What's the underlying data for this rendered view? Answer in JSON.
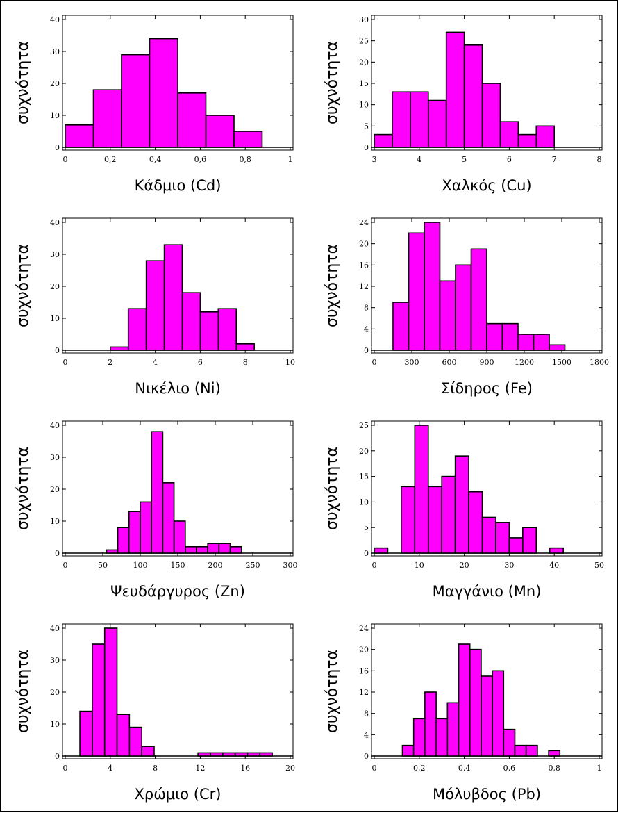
{
  "colors": {
    "bar_fill": "#ff00ff",
    "bar_stroke": "#000000",
    "frame": "#000000"
  },
  "chart_data": [
    {
      "type": "bar",
      "xlabel": "Κάδμιο (Cd)",
      "ylabel": "συχνότητα",
      "xlim": [
        0,
        1
      ],
      "ylim": [
        0,
        40
      ],
      "xticks": [
        0,
        0.2,
        0.4,
        0.6,
        0.8,
        1
      ],
      "xtick_labels": [
        "0",
        "0,2",
        "0,4",
        "0,6",
        "0,8",
        "1"
      ],
      "yticks": [
        0,
        10,
        20,
        30,
        40
      ],
      "ytick_labels": [
        "0",
        "10",
        "20",
        "30",
        "40"
      ],
      "bins": [
        {
          "x0": 0.0,
          "x1": 0.125,
          "count": 7
        },
        {
          "x0": 0.125,
          "x1": 0.25,
          "count": 18
        },
        {
          "x0": 0.25,
          "x1": 0.375,
          "count": 29
        },
        {
          "x0": 0.375,
          "x1": 0.5,
          "count": 34
        },
        {
          "x0": 0.5,
          "x1": 0.625,
          "count": 17
        },
        {
          "x0": 0.625,
          "x1": 0.75,
          "count": 10
        },
        {
          "x0": 0.75,
          "x1": 0.875,
          "count": 5
        }
      ]
    },
    {
      "type": "bar",
      "xlabel": "Χαλκός (Cu)",
      "ylabel": "συχνότητα",
      "xlim": [
        3,
        8
      ],
      "ylim": [
        0,
        30
      ],
      "xticks": [
        3,
        4,
        5,
        6,
        7,
        8
      ],
      "xtick_labels": [
        "3",
        "4",
        "5",
        "6",
        "7",
        "8"
      ],
      "yticks": [
        0,
        5,
        10,
        15,
        20,
        25,
        30
      ],
      "ytick_labels": [
        "0",
        "5",
        "10",
        "15",
        "20",
        "25",
        "30"
      ],
      "bins": [
        {
          "x0": 3.0,
          "x1": 3.4,
          "count": 3
        },
        {
          "x0": 3.4,
          "x1": 3.8,
          "count": 13
        },
        {
          "x0": 3.8,
          "x1": 4.2,
          "count": 13
        },
        {
          "x0": 4.2,
          "x1": 4.6,
          "count": 11
        },
        {
          "x0": 4.6,
          "x1": 5.0,
          "count": 27
        },
        {
          "x0": 5.0,
          "x1": 5.4,
          "count": 24
        },
        {
          "x0": 5.4,
          "x1": 5.8,
          "count": 15
        },
        {
          "x0": 5.8,
          "x1": 6.2,
          "count": 6
        },
        {
          "x0": 6.2,
          "x1": 6.6,
          "count": 3
        },
        {
          "x0": 6.6,
          "x1": 7.0,
          "count": 5
        }
      ]
    },
    {
      "type": "bar",
      "xlabel": "Νικέλιο (Ni)",
      "ylabel": "συχνότητα",
      "xlim": [
        0,
        10
      ],
      "ylim": [
        0,
        40
      ],
      "xticks": [
        0,
        2,
        4,
        6,
        8,
        10
      ],
      "xtick_labels": [
        "0",
        "2",
        "4",
        "6",
        "8",
        "10"
      ],
      "yticks": [
        0,
        10,
        20,
        30,
        40
      ],
      "ytick_labels": [
        "0",
        "10",
        "20",
        "30",
        "40"
      ],
      "bins": [
        {
          "x0": 2.0,
          "x1": 2.8,
          "count": 1
        },
        {
          "x0": 2.8,
          "x1": 3.6,
          "count": 13
        },
        {
          "x0": 3.6,
          "x1": 4.4,
          "count": 28
        },
        {
          "x0": 4.4,
          "x1": 5.2,
          "count": 33
        },
        {
          "x0": 5.2,
          "x1": 6.0,
          "count": 18
        },
        {
          "x0": 6.0,
          "x1": 6.8,
          "count": 12
        },
        {
          "x0": 6.8,
          "x1": 7.6,
          "count": 13
        },
        {
          "x0": 7.6,
          "x1": 8.4,
          "count": 2
        }
      ]
    },
    {
      "type": "bar",
      "xlabel": "Σίδηρος (Fe)",
      "ylabel": "συχνότητα",
      "xlim": [
        0,
        1800
      ],
      "ylim": [
        0,
        24
      ],
      "xticks": [
        0,
        300,
        600,
        900,
        1200,
        1500,
        1800
      ],
      "xtick_labels": [
        "0",
        "300",
        "600",
        "900",
        "1200",
        "1500",
        "1800"
      ],
      "yticks": [
        0,
        4,
        8,
        12,
        16,
        20,
        24
      ],
      "ytick_labels": [
        "0",
        "4",
        "8",
        "12",
        "16",
        "20",
        "24"
      ],
      "bins": [
        {
          "x0": 150,
          "x1": 275,
          "count": 9
        },
        {
          "x0": 275,
          "x1": 400,
          "count": 22
        },
        {
          "x0": 400,
          "x1": 525,
          "count": 24
        },
        {
          "x0": 525,
          "x1": 650,
          "count": 13
        },
        {
          "x0": 650,
          "x1": 775,
          "count": 16
        },
        {
          "x0": 775,
          "x1": 900,
          "count": 19
        },
        {
          "x0": 900,
          "x1": 1025,
          "count": 5
        },
        {
          "x0": 1025,
          "x1": 1150,
          "count": 5
        },
        {
          "x0": 1150,
          "x1": 1275,
          "count": 3
        },
        {
          "x0": 1275,
          "x1": 1400,
          "count": 3
        },
        {
          "x0": 1400,
          "x1": 1525,
          "count": 1
        }
      ]
    },
    {
      "type": "bar",
      "xlabel": "Ψευδάργυρος (Zn)",
      "ylabel": "συχνότητα",
      "xlim": [
        0,
        300
      ],
      "ylim": [
        0,
        40
      ],
      "xticks": [
        0,
        50,
        100,
        150,
        200,
        250,
        300
      ],
      "xtick_labels": [
        "0",
        "50",
        "100",
        "150",
        "200",
        "250",
        "300"
      ],
      "yticks": [
        0,
        10,
        20,
        30,
        40
      ],
      "ytick_labels": [
        "0",
        "10",
        "20",
        "30",
        "40"
      ],
      "bins": [
        {
          "x0": 55,
          "x1": 70,
          "count": 1
        },
        {
          "x0": 70,
          "x1": 85,
          "count": 8
        },
        {
          "x0": 85,
          "x1": 100,
          "count": 13
        },
        {
          "x0": 100,
          "x1": 115,
          "count": 16
        },
        {
          "x0": 115,
          "x1": 130,
          "count": 38
        },
        {
          "x0": 130,
          "x1": 145,
          "count": 22
        },
        {
          "x0": 145,
          "x1": 160,
          "count": 10
        },
        {
          "x0": 160,
          "x1": 175,
          "count": 2
        },
        {
          "x0": 175,
          "x1": 190,
          "count": 2
        },
        {
          "x0": 190,
          "x1": 205,
          "count": 3
        },
        {
          "x0": 205,
          "x1": 220,
          "count": 3
        },
        {
          "x0": 220,
          "x1": 235,
          "count": 2
        }
      ]
    },
    {
      "type": "bar",
      "xlabel": "Μαγγάνιο (Mn)",
      "ylabel": "συχνότητα",
      "xlim": [
        0,
        50
      ],
      "ylim": [
        0,
        25
      ],
      "xticks": [
        0,
        10,
        20,
        30,
        40,
        50
      ],
      "xtick_labels": [
        "0",
        "10",
        "20",
        "30",
        "40",
        "50"
      ],
      "yticks": [
        0,
        5,
        10,
        15,
        20,
        25
      ],
      "ytick_labels": [
        "0",
        "5",
        "10",
        "15",
        "20",
        "25"
      ],
      "bins": [
        {
          "x0": 0,
          "x1": 3,
          "count": 1
        },
        {
          "x0": 6,
          "x1": 9,
          "count": 13
        },
        {
          "x0": 9,
          "x1": 12,
          "count": 25
        },
        {
          "x0": 12,
          "x1": 15,
          "count": 13
        },
        {
          "x0": 15,
          "x1": 18,
          "count": 15
        },
        {
          "x0": 18,
          "x1": 21,
          "count": 19
        },
        {
          "x0": 21,
          "x1": 24,
          "count": 12
        },
        {
          "x0": 24,
          "x1": 27,
          "count": 7
        },
        {
          "x0": 27,
          "x1": 30,
          "count": 6
        },
        {
          "x0": 30,
          "x1": 33,
          "count": 3
        },
        {
          "x0": 33,
          "x1": 36,
          "count": 5
        },
        {
          "x0": 39,
          "x1": 42,
          "count": 1
        }
      ]
    },
    {
      "type": "bar",
      "xlabel": "Χρώμιο (Cr)",
      "ylabel": "συχνότητα",
      "xlim": [
        0,
        20
      ],
      "ylim": [
        0,
        40
      ],
      "xticks": [
        0,
        4,
        8,
        12,
        16,
        20
      ],
      "xtick_labels": [
        "0",
        "4",
        "8",
        "12",
        "16",
        "20"
      ],
      "yticks": [
        0,
        10,
        20,
        30,
        40
      ],
      "ytick_labels": [
        "0",
        "10",
        "20",
        "30",
        "40"
      ],
      "bins": [
        {
          "x0": 1.3,
          "x1": 2.4,
          "count": 14
        },
        {
          "x0": 2.4,
          "x1": 3.5,
          "count": 35
        },
        {
          "x0": 3.5,
          "x1": 4.6,
          "count": 40
        },
        {
          "x0": 4.6,
          "x1": 5.7,
          "count": 13
        },
        {
          "x0": 5.7,
          "x1": 6.8,
          "count": 9
        },
        {
          "x0": 6.8,
          "x1": 7.9,
          "count": 3
        },
        {
          "x0": 11.8,
          "x1": 12.9,
          "count": 1
        },
        {
          "x0": 12.9,
          "x1": 14.0,
          "count": 1
        },
        {
          "x0": 14.0,
          "x1": 15.1,
          "count": 1
        },
        {
          "x0": 15.1,
          "x1": 16.2,
          "count": 1
        },
        {
          "x0": 16.2,
          "x1": 17.3,
          "count": 1
        },
        {
          "x0": 17.3,
          "x1": 18.4,
          "count": 1
        }
      ]
    },
    {
      "type": "bar",
      "xlabel": "Μόλυβδος (Pb)",
      "ylabel": "συχνότητα",
      "xlim": [
        0,
        1
      ],
      "ylim": [
        0,
        24
      ],
      "xticks": [
        0,
        0.2,
        0.4,
        0.6,
        0.8,
        1
      ],
      "xtick_labels": [
        "0",
        "0,2",
        "0,4",
        "0,6",
        "0,8",
        "1"
      ],
      "yticks": [
        0,
        4,
        8,
        12,
        16,
        20,
        24
      ],
      "ytick_labels": [
        "0",
        "4",
        "8",
        "12",
        "16",
        "20",
        "24"
      ],
      "bins": [
        {
          "x0": 0.125,
          "x1": 0.175,
          "count": 2
        },
        {
          "x0": 0.175,
          "x1": 0.225,
          "count": 7
        },
        {
          "x0": 0.225,
          "x1": 0.275,
          "count": 12
        },
        {
          "x0": 0.275,
          "x1": 0.325,
          "count": 7
        },
        {
          "x0": 0.325,
          "x1": 0.375,
          "count": 10
        },
        {
          "x0": 0.375,
          "x1": 0.425,
          "count": 21
        },
        {
          "x0": 0.425,
          "x1": 0.475,
          "count": 20
        },
        {
          "x0": 0.475,
          "x1": 0.525,
          "count": 15
        },
        {
          "x0": 0.525,
          "x1": 0.575,
          "count": 16
        },
        {
          "x0": 0.575,
          "x1": 0.625,
          "count": 5
        },
        {
          "x0": 0.625,
          "x1": 0.675,
          "count": 2
        },
        {
          "x0": 0.675,
          "x1": 0.725,
          "count": 2
        },
        {
          "x0": 0.725,
          "x1": 0.775,
          "count": 0
        },
        {
          "x0": 0.775,
          "x1": 0.825,
          "count": 1
        }
      ]
    }
  ]
}
